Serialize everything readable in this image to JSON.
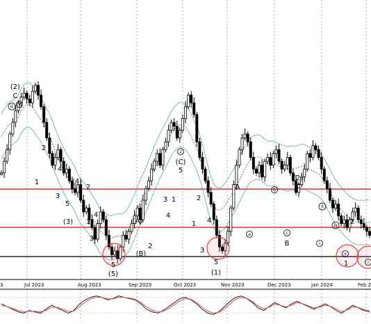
{
  "chart_data": {
    "type": "candlestick",
    "date_labels": [
      "Jul 2023",
      "Aug 2023",
      "Sep 2023",
      "Oct 2023",
      "Nov 2023",
      "Dec 2023",
      "Jan 2024",
      "Feb 2"
    ],
    "date_label_partial_left": "3",
    "horizontal_levels": [
      {
        "name": "upper-resistance",
        "color": "#e03030",
        "y_fraction": 0.676
      },
      {
        "name": "middle-resistance",
        "color": "#e03030",
        "y_fraction": 0.456
      },
      {
        "name": "support",
        "color": "#222222",
        "y_fraction": 0.242
      }
    ],
    "candles_y": [
      0.54,
      0.6,
      0.66,
      0.74,
      0.8,
      0.86,
      0.9,
      0.93,
      0.95,
      0.92,
      0.9,
      0.96,
      0.99,
      0.94,
      0.88,
      0.8,
      0.72,
      0.64,
      0.58,
      0.62,
      0.66,
      0.6,
      0.54,
      0.56,
      0.5,
      0.46,
      0.44,
      0.48,
      0.4,
      0.34,
      0.36,
      0.3,
      0.26,
      0.2,
      0.28,
      0.34,
      0.3,
      0.22,
      0.16,
      0.12,
      0.14,
      0.1,
      0.16,
      0.22,
      0.2,
      0.24,
      0.28,
      0.32,
      0.36,
      0.3,
      0.4,
      0.46,
      0.5,
      0.56,
      0.6,
      0.64,
      0.58,
      0.66,
      0.7,
      0.76,
      0.8,
      0.78,
      0.72,
      0.76,
      0.82,
      0.88,
      0.94,
      0.9,
      0.84,
      0.7,
      0.62,
      0.56,
      0.5,
      0.44,
      0.38,
      0.3,
      0.22,
      0.16,
      0.14,
      0.18,
      0.24,
      0.36,
      0.48,
      0.58,
      0.66,
      0.72,
      0.74,
      0.7,
      0.62,
      0.56,
      0.54,
      0.58,
      0.52,
      0.6,
      0.62,
      0.58,
      0.64,
      0.66,
      0.6,
      0.56,
      0.58,
      0.62,
      0.54,
      0.5,
      0.44,
      0.48,
      0.52,
      0.56,
      0.64,
      0.62,
      0.68,
      0.66,
      0.62,
      0.56,
      0.5,
      0.46,
      0.4,
      0.36,
      0.38,
      0.32,
      0.28,
      0.3,
      0.26,
      0.3,
      0.34,
      0.36,
      0.3,
      0.28,
      0.26,
      0.24,
      0.22
    ],
    "wave_labels": [
      {
        "text": "(2)",
        "circled": false
      },
      {
        "text": "C",
        "circled": false
      },
      {
        "text": "iii",
        "circled": true
      },
      {
        "text": "v",
        "circled": true
      },
      {
        "text": "2",
        "circled": false
      },
      {
        "text": "1",
        "circled": false
      },
      {
        "text": "4",
        "circled": false
      },
      {
        "text": "3",
        "circled": false
      },
      {
        "text": "(4)",
        "circled": false
      },
      {
        "text": "2",
        "circled": false
      },
      {
        "text": "5",
        "circled": false
      },
      {
        "text": "(3)",
        "circled": false
      },
      {
        "text": "4",
        "circled": false
      },
      {
        "text": "1",
        "circled": false
      },
      {
        "text": "3",
        "circled": false
      },
      {
        "text": "5",
        "circled": false
      },
      {
        "text": "(5)",
        "circled": false
      },
      {
        "text": "(A)",
        "circled": false
      },
      {
        "text": "(B)",
        "circled": false
      },
      {
        "text": "2",
        "circled": false
      },
      {
        "text": "4",
        "circled": false
      },
      {
        "text": "3",
        "circled": false
      },
      {
        "text": "1",
        "circled": false
      },
      {
        "text": "2",
        "circled": true
      },
      {
        "text": "(C)",
        "circled": false
      },
      {
        "text": "5",
        "circled": false
      },
      {
        "text": "2",
        "circled": false
      },
      {
        "text": "1",
        "circled": false
      },
      {
        "text": "4",
        "circled": false
      },
      {
        "text": "3",
        "circled": false
      },
      {
        "text": "5",
        "circled": false
      },
      {
        "text": "(1)",
        "circled": false
      },
      {
        "text": "A",
        "circled": false
      },
      {
        "text": "b",
        "circled": true
      },
      {
        "text": "a",
        "circled": true
      },
      {
        "text": "(2)",
        "circled": false
      },
      {
        "text": "C",
        "circled": false
      },
      {
        "text": "c",
        "circled": true
      },
      {
        "text": "B",
        "circled": false
      },
      {
        "text": "ii",
        "circled": true
      },
      {
        "text": "i",
        "circled": true
      },
      {
        "text": "iv",
        "circled": true
      },
      {
        "text": "2",
        "circled": false
      },
      {
        "text": "v",
        "circled": true
      },
      {
        "text": "1",
        "circled": false
      },
      {
        "text": "i",
        "circled": true
      }
    ],
    "highlight_circles": 4,
    "grid": "vertical",
    "oscillator": {
      "series": [
        {
          "name": "",
          "color": "#222222",
          "values": [
            0.55,
            0.45,
            0.35,
            0.25,
            0.2,
            0.3,
            0.25,
            0.2,
            0.35,
            0.5,
            0.4,
            0.3,
            0.2,
            0.3,
            0.55,
            0.7,
            0.8,
            0.85,
            0.8,
            0.7,
            0.75,
            0.85,
            0.8,
            0.75,
            0.7,
            0.55,
            0.35,
            0.25,
            0.2,
            0.3,
            0.45,
            0.6,
            0.75,
            0.8,
            0.7,
            0.55,
            0.35,
            0.2,
            0.15,
            0.25,
            0.45,
            0.65,
            0.8,
            0.85,
            0.75,
            0.6,
            0.4,
            0.3,
            0.45,
            0.6,
            0.5,
            0.4,
            0.55,
            0.65,
            0.55,
            0.45,
            0.35,
            0.45,
            0.55,
            0.45,
            0.3,
            0.2,
            0.35,
            0.5,
            0.4,
            0.3,
            0.25
          ]
        },
        {
          "name": "",
          "color": "#e05050",
          "values": [
            0.5,
            0.45,
            0.38,
            0.3,
            0.25,
            0.27,
            0.27,
            0.25,
            0.3,
            0.42,
            0.42,
            0.35,
            0.27,
            0.28,
            0.45,
            0.62,
            0.74,
            0.8,
            0.8,
            0.74,
            0.74,
            0.8,
            0.8,
            0.77,
            0.72,
            0.6,
            0.44,
            0.32,
            0.25,
            0.27,
            0.38,
            0.52,
            0.66,
            0.75,
            0.72,
            0.6,
            0.42,
            0.28,
            0.2,
            0.23,
            0.37,
            0.55,
            0.72,
            0.8,
            0.76,
            0.64,
            0.48,
            0.36,
            0.42,
            0.54,
            0.5,
            0.44,
            0.5,
            0.6,
            0.56,
            0.48,
            0.4,
            0.43,
            0.5,
            0.46,
            0.36,
            0.26,
            0.32,
            0.44,
            0.41,
            0.34,
            0.29
          ]
        }
      ]
    }
  }
}
